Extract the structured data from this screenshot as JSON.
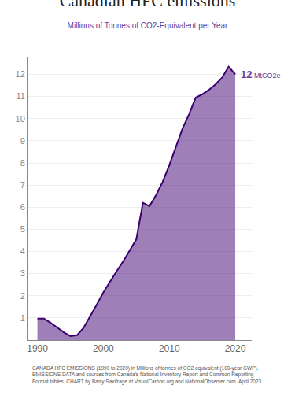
{
  "chart_data": {
    "type": "area",
    "title": "Canadian HFC emissions",
    "subtitle": "Millions of Tonnes of CO2-Equivalent per Year",
    "footnote": "CANADA HFC EMISSIONS (1990 to 2020) in Millions of tonnes of CO2 equivalent (100-year GWP).\nEMISSIONS DATA and sources from Canada’s National Inventory Report and Common Reporting\nFormat tables. CHART by Barry Saxifrage at VisualCarbon.org and NationalObserver.com. April 2023.",
    "x": [
      1990,
      1991,
      1992,
      1993,
      1994,
      1995,
      1996,
      1997,
      1998,
      1999,
      2000,
      2001,
      2002,
      2003,
      2004,
      2005,
      2006,
      2007,
      2008,
      2009,
      2010,
      2011,
      2012,
      2013,
      2014,
      2015,
      2016,
      2017,
      2018,
      2019,
      2020
    ],
    "values": [
      0.97,
      0.97,
      0.78,
      0.55,
      0.35,
      0.18,
      0.22,
      0.55,
      1.05,
      1.6,
      2.15,
      2.65,
      3.1,
      3.55,
      4.05,
      4.55,
      6.2,
      6.05,
      6.55,
      7.15,
      7.9,
      8.75,
      9.55,
      10.2,
      10.95,
      11.1,
      11.3,
      11.55,
      11.85,
      12.35,
      12.0
    ],
    "color": "#3d0070",
    "xlim": [
      1988.5,
      2022.5
    ],
    "xticks": [
      1990,
      2000,
      2010,
      2020
    ],
    "ylim": [
      0,
      12.8
    ],
    "yticks": [
      1,
      2,
      3,
      4,
      5,
      6,
      7,
      8,
      9,
      10,
      11,
      12
    ],
    "grid": true,
    "annotations": [
      {
        "text": "12",
        "unit": " MtCO2e",
        "x": 2020,
        "y": 12.0
      }
    ]
  }
}
